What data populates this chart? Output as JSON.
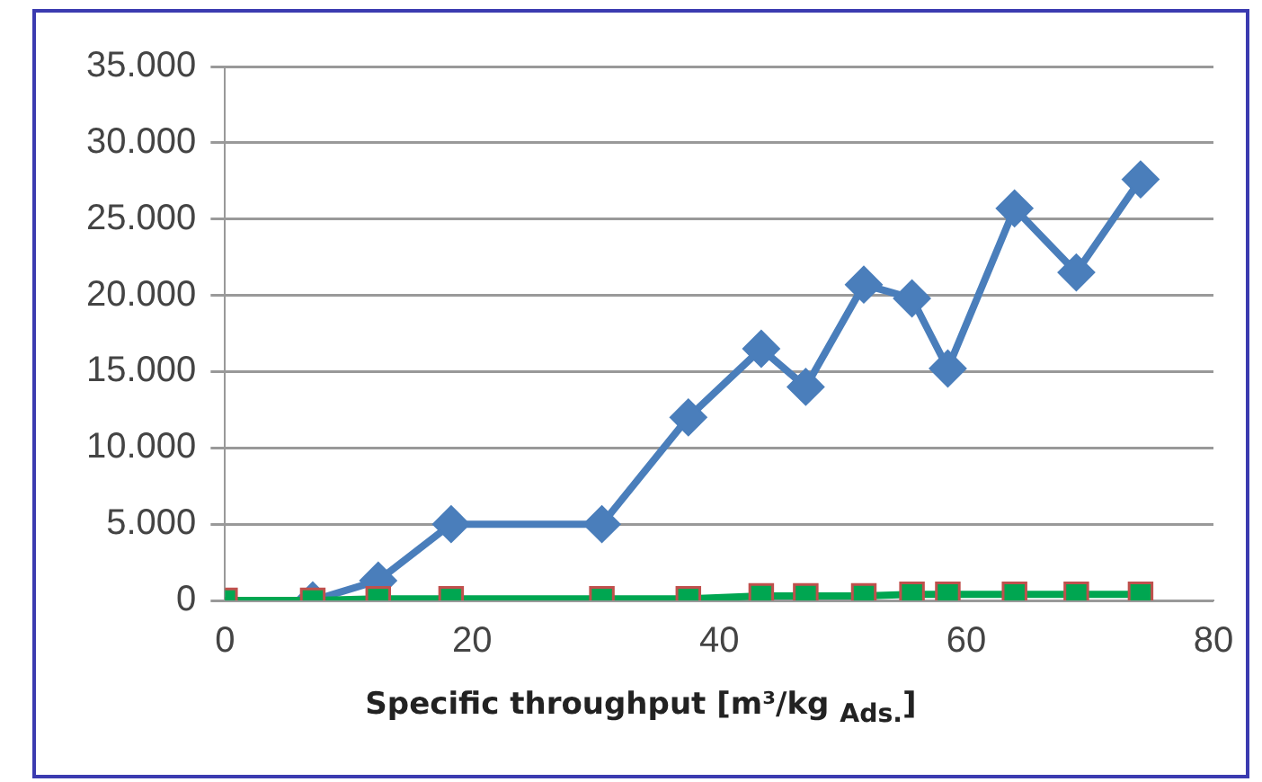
{
  "chart_data": {
    "type": "line",
    "xlabel": "Specific throughput  [m³/kg $_{Ads.}$]",
    "series": [
      {
        "color": "#4a7ebb",
        "marker": "diamond",
        "x": [
          7.1,
          12.4,
          18.3,
          30.5,
          37.5,
          43.4,
          47,
          51.7,
          55.6,
          58.5,
          63.9,
          68.9,
          74.1
        ],
        "values": [
          0,
          1300,
          5000,
          5000,
          12000,
          16500,
          14000,
          20700,
          19800,
          15200,
          25700,
          21500,
          27600
        ]
      },
      {
        "color": "#00a651",
        "marker": "square",
        "x": [
          0,
          7.1,
          12.4,
          18.3,
          30.5,
          37.5,
          43.4,
          47,
          51.7,
          55.6,
          58.5,
          63.9,
          68.9,
          74.1
        ],
        "values": [
          0,
          0,
          100,
          100,
          100,
          100,
          300,
          300,
          300,
          400,
          400,
          400,
          400,
          400
        ]
      }
    ],
    "xlim": [
      0,
      80
    ],
    "xticks": [
      0,
      20,
      40,
      60,
      80
    ],
    "ylim": [
      0,
      35000
    ],
    "yticks": [
      0,
      {
        "value": 5000,
        "label": "5.000"
      },
      {
        "value": 10000,
        "label": "10.000"
      },
      {
        "value": 15000,
        "label": "15.000"
      },
      {
        "value": 20000,
        "label": "20.000"
      },
      {
        "value": 25000,
        "label": "25.000"
      },
      {
        "value": 30000,
        "label": "30.000"
      },
      {
        "value": 35000,
        "label": "35.000"
      }
    ],
    "grid": "y",
    "legend": false
  }
}
